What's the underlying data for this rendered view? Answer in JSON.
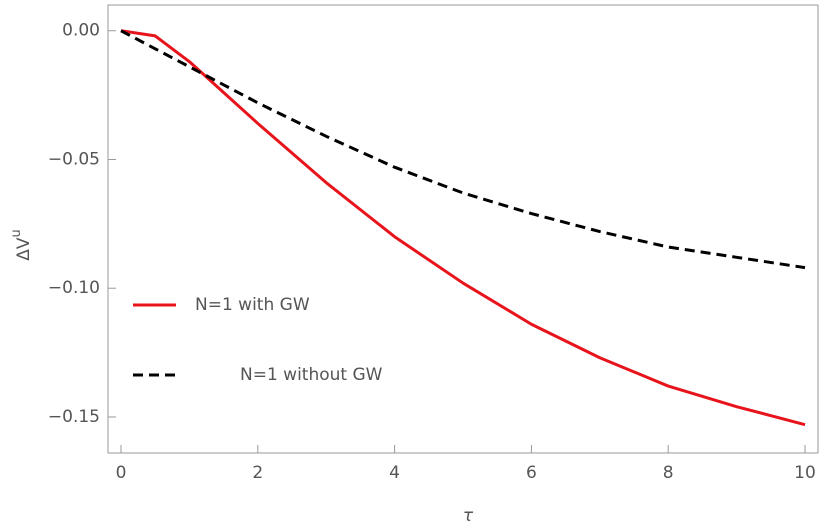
{
  "chart_data": {
    "type": "line",
    "xlabel": "τ",
    "ylabel": "ΔV",
    "ylabel_sup": "u",
    "x": [
      0,
      0.5,
      1,
      1.5,
      2,
      3,
      4,
      5,
      6,
      7,
      8,
      9,
      10
    ],
    "series": [
      {
        "name": "N=1 with GW",
        "color": "#e8141c",
        "style": "solid",
        "values": [
          0,
          -0.002,
          -0.012,
          -0.024,
          -0.036,
          -0.059,
          -0.08,
          -0.098,
          -0.114,
          -0.127,
          -0.138,
          -0.146,
          -0.153
        ]
      },
      {
        "name": "N=1 without GW",
        "color": "#000000",
        "style": "dashed",
        "values": [
          0,
          -0.007,
          -0.014,
          -0.021,
          -0.028,
          -0.041,
          -0.053,
          -0.063,
          -0.071,
          -0.078,
          -0.084,
          -0.088,
          -0.092
        ]
      }
    ],
    "xlim": [
      -0.19,
      10.19
    ],
    "ylim": [
      -0.164,
      0.01
    ],
    "xticks": [
      0,
      2,
      4,
      6,
      8,
      10
    ],
    "yticks": [
      {
        "value": 0,
        "label": "0.00"
      },
      {
        "value": -0.05,
        "label": "−0.05"
      },
      {
        "value": -0.1,
        "label": "−0.10"
      },
      {
        "value": -0.15,
        "label": "−0.15"
      }
    ],
    "legend": "left",
    "grid": false
  }
}
